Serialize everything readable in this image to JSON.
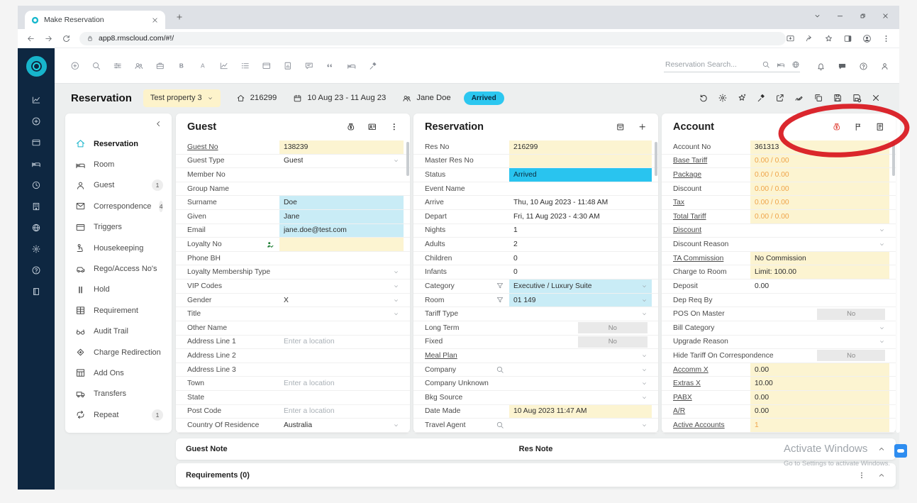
{
  "colors": {
    "accent_teal": "#17b4cb",
    "sidebar_navy": "#0e2741",
    "status_cyan": "#29c4ef",
    "field_yellow": "#fcf4d1",
    "field_cyan": "#c9ecf6",
    "orange_value": "#efa44a",
    "annotation_red": "#d8151c"
  },
  "browser": {
    "tab_title": "Make Reservation",
    "url": "app8.rmscloud.com/#!/",
    "favicon": "rms-favicon-icon",
    "tab_close": "close-icon",
    "new_tab": "plus-icon",
    "window_controls": [
      "chevron-down-icon",
      "minimize-icon",
      "restore-icon",
      "close-icon"
    ],
    "nav_icons": [
      "back-icon",
      "forward-icon",
      "reload-icon"
    ],
    "omnibox_icon": "lock-icon",
    "action_icons": [
      "download-icon",
      "share-icon",
      "bookmark-star-icon",
      "sidebar-icon",
      "profile-avatar-icon",
      "kebab-menu-icon"
    ]
  },
  "app_toolbar": {
    "left_icons": [
      "plus-circle-icon",
      "search-icon",
      "sliders-icon",
      "people-icon",
      "briefcase-icon",
      "bold-icon",
      "font-icon",
      "chart-icon",
      "checklist-icon",
      "card-icon",
      "doc-chart-icon",
      "message-edit-icon",
      "quote-icon",
      "bed-icon",
      "hammer-icon"
    ],
    "search": {
      "placeholder": "Reservation Search...",
      "icons": [
        "search-icon",
        "bed-icon",
        "globe-icon"
      ]
    },
    "right_icons": [
      "bell-icon",
      "chat-icon",
      "help-icon",
      "user-icon"
    ]
  },
  "page_header": {
    "title": "Reservation",
    "property_selector": {
      "label": "Test property 3",
      "chevron": "chevron-down-icon"
    },
    "meta": [
      {
        "name": "res-number",
        "icon": "home-icon",
        "text": "216299"
      },
      {
        "name": "date-range",
        "icon": "calendar-icon",
        "text": "10 Aug 23 - 11 Aug 23"
      },
      {
        "name": "guest-name",
        "icon": "people-icon",
        "text": "Jane Doe"
      }
    ],
    "status_badge": "Arrived",
    "action_icons": [
      "history-icon",
      "settings-gear-icon",
      "star-icon",
      "hammer-icon",
      "export-icon",
      "signature-icon",
      "copy-icon",
      "save-icon",
      "save-close-icon",
      "close-icon"
    ]
  },
  "side_rail": {
    "icons": [
      "chart-icon",
      "plus-circle-icon",
      "card-icon",
      "bed-icon",
      "clock-icon",
      "building-icon",
      "globe-icon",
      "gear-icon",
      "help-icon",
      "book-icon"
    ]
  },
  "nav_menu": {
    "collapse_icon": "chevron-left-icon",
    "items": [
      {
        "icon": "home-icon",
        "label": "Reservation",
        "active": true
      },
      {
        "icon": "bed-icon",
        "label": "Room"
      },
      {
        "icon": "person-icon",
        "label": "Guest",
        "badge": "1"
      },
      {
        "icon": "envelope-icon",
        "label": "Correspondence",
        "badge": "4"
      },
      {
        "icon": "card-icon",
        "label": "Triggers"
      },
      {
        "icon": "housekeeping-icon",
        "label": "Housekeeping"
      },
      {
        "icon": "car-icon",
        "label": "Rego/Access No's"
      },
      {
        "icon": "pause-icon",
        "label": "Hold"
      },
      {
        "icon": "grid-icon",
        "label": "Requirement"
      },
      {
        "icon": "glasses-icon",
        "label": "Audit Trail"
      },
      {
        "icon": "diamond-arrow-icon",
        "label": "Charge Redirection"
      },
      {
        "icon": "addons-icon",
        "label": "Add Ons"
      },
      {
        "icon": "truck-icon",
        "label": "Transfers"
      },
      {
        "icon": "repeat-icon",
        "label": "Repeat",
        "badge": "1"
      }
    ]
  },
  "panels": {
    "guest": {
      "title": "Guest",
      "header_icons": [
        "moneybag-icon",
        "guest-card-icon",
        "kebab-menu-icon"
      ],
      "rows": [
        {
          "label": "Guest No",
          "link": true,
          "value": "138239",
          "bg": "yellow"
        },
        {
          "label": "Guest Type",
          "value": "Guest",
          "dropdown": true
        },
        {
          "label": "Member No"
        },
        {
          "label": "Group Name"
        },
        {
          "label": "Surname",
          "value": "Doe",
          "bg": "cyan"
        },
        {
          "label": "Given",
          "value": "Jane",
          "bg": "cyan"
        },
        {
          "label": "Email",
          "value": "jane.doe@test.com",
          "bg": "cyan"
        },
        {
          "label": "Loyalty No",
          "label_icon": "loyalty-member-icon",
          "bg": "yellow"
        },
        {
          "label": "Phone BH"
        },
        {
          "label": "Loyalty Membership Type",
          "dropdown": true
        },
        {
          "label": "VIP Codes",
          "dropdown": true
        },
        {
          "label": "Gender",
          "value": "X",
          "dropdown": true
        },
        {
          "label": "Title",
          "dropdown": true
        },
        {
          "label": "Other Name"
        },
        {
          "label": "Address Line 1",
          "placeholder": "Enter a location"
        },
        {
          "label": "Address Line 2"
        },
        {
          "label": "Address Line 3"
        },
        {
          "label": "Town",
          "placeholder": "Enter a location"
        },
        {
          "label": "State"
        },
        {
          "label": "Post Code",
          "placeholder": "Enter a location"
        },
        {
          "label": "Country Of Residence",
          "value": "Australia",
          "dropdown": true
        }
      ]
    },
    "reservation": {
      "title": "Reservation",
      "header_icons": [
        "calendar-box-icon",
        "plus-icon"
      ],
      "rows": [
        {
          "label": "Res No",
          "value": "216299",
          "bg": "yellow"
        },
        {
          "label": "Master Res No",
          "bg": "yellow"
        },
        {
          "label": "Status",
          "value": "Arrived",
          "bg": "status"
        },
        {
          "label": "Event Name"
        },
        {
          "label": "Arrive",
          "value": "Thu, 10 Aug 2023 - 11:48 AM"
        },
        {
          "label": "Depart",
          "value": "Fri, 11 Aug 2023 - 4:30 AM"
        },
        {
          "label": "Nights",
          "value": "1"
        },
        {
          "label": "Adults",
          "value": "2"
        },
        {
          "label": "Children",
          "value": "0"
        },
        {
          "label": "Infants",
          "value": "0"
        },
        {
          "label": "Category",
          "label_icon": "funnel-icon",
          "value": "Executive / Luxury Suite",
          "bg": "cyan",
          "dropdown": true
        },
        {
          "label": "Room",
          "label_icon": "funnel-icon",
          "value": "01 149",
          "bg": "cyan",
          "dropdown": true
        },
        {
          "label": "Tariff Type",
          "dropdown": true
        },
        {
          "label": "Long Term",
          "toggle": "No"
        },
        {
          "label": "Fixed",
          "toggle": "No"
        },
        {
          "label": "Meal Plan",
          "link": true,
          "dropdown": true
        },
        {
          "label": "Company",
          "label_icon": "search-icon",
          "dropdown": true
        },
        {
          "label": "Company Unknown",
          "dropdown": true
        },
        {
          "label": "Bkg Source",
          "dropdown": true
        },
        {
          "label": "Date Made",
          "value": "10 Aug 2023 11:47 AM",
          "bg": "yellow"
        },
        {
          "label": "Travel Agent",
          "label_icon": "search-icon",
          "dropdown": true
        }
      ]
    },
    "account": {
      "title": "Account",
      "header_icons": [
        "moneybag-red-icon",
        "flag-icon",
        "ledger-icon"
      ],
      "rows": [
        {
          "label": "Account No",
          "value": "361313",
          "bg": "yellow"
        },
        {
          "label": "Base Tariff",
          "link": true,
          "value": "0.00 / 0.00",
          "bg": "yellow",
          "orange": true
        },
        {
          "label": "Package",
          "link": true,
          "value": "0.00 / 0.00",
          "bg": "yellow",
          "orange": true
        },
        {
          "label": "Discount",
          "value": "0.00 / 0.00",
          "bg": "yellow",
          "orange": true
        },
        {
          "label": "Tax",
          "link": true,
          "value": "0.00 / 0.00",
          "bg": "yellow",
          "orange": true
        },
        {
          "label": "Total Tariff",
          "link": true,
          "value": "0.00 / 0.00",
          "bg": "yellow",
          "orange": true
        },
        {
          "label": "Discount",
          "link": true,
          "dropdown": true
        },
        {
          "label": "Discount Reason",
          "dropdown": true
        },
        {
          "label": "TA Commission",
          "link": true,
          "value": "No Commission",
          "bg": "yellow"
        },
        {
          "label": "Charge to Room",
          "value": "Limit: 100.00",
          "bg": "yellow"
        },
        {
          "label": "Deposit",
          "value": "0.00"
        },
        {
          "label": "Dep Req By"
        },
        {
          "label": "POS On Master",
          "toggle": "No"
        },
        {
          "label": "Bill Category",
          "dropdown": true
        },
        {
          "label": "Upgrade Reason",
          "dropdown": true
        },
        {
          "label": "Hide Tariff On Correspondence",
          "toggle": "No"
        },
        {
          "label": "Accomm X",
          "link": true,
          "value": "0.00",
          "bg": "yellow"
        },
        {
          "label": "Extras X",
          "link": true,
          "value": "10.00",
          "bg": "yellow"
        },
        {
          "label": "PABX",
          "link": true,
          "value": "0.00",
          "bg": "yellow"
        },
        {
          "label": "A/R",
          "link": true,
          "value": "0.00",
          "bg": "yellow"
        },
        {
          "label": "Active Accounts",
          "link": true,
          "value": "1",
          "bg": "yellow",
          "orange": true
        }
      ]
    }
  },
  "bottom_bars": {
    "guest_note": "Guest Note",
    "res_note": "Res Note",
    "requirements": "Requirements (0)",
    "note_icons": [
      "chevron-up-icon"
    ],
    "req_icons": [
      "kebab-menu-icon",
      "chevron-up-icon"
    ]
  },
  "watermark": {
    "line1": "Activate Windows",
    "line2": "Go to Settings to activate Windows."
  },
  "annotation": {
    "shape": "hand-drawn-ellipse",
    "highlights": "account-panel-header-icons"
  }
}
